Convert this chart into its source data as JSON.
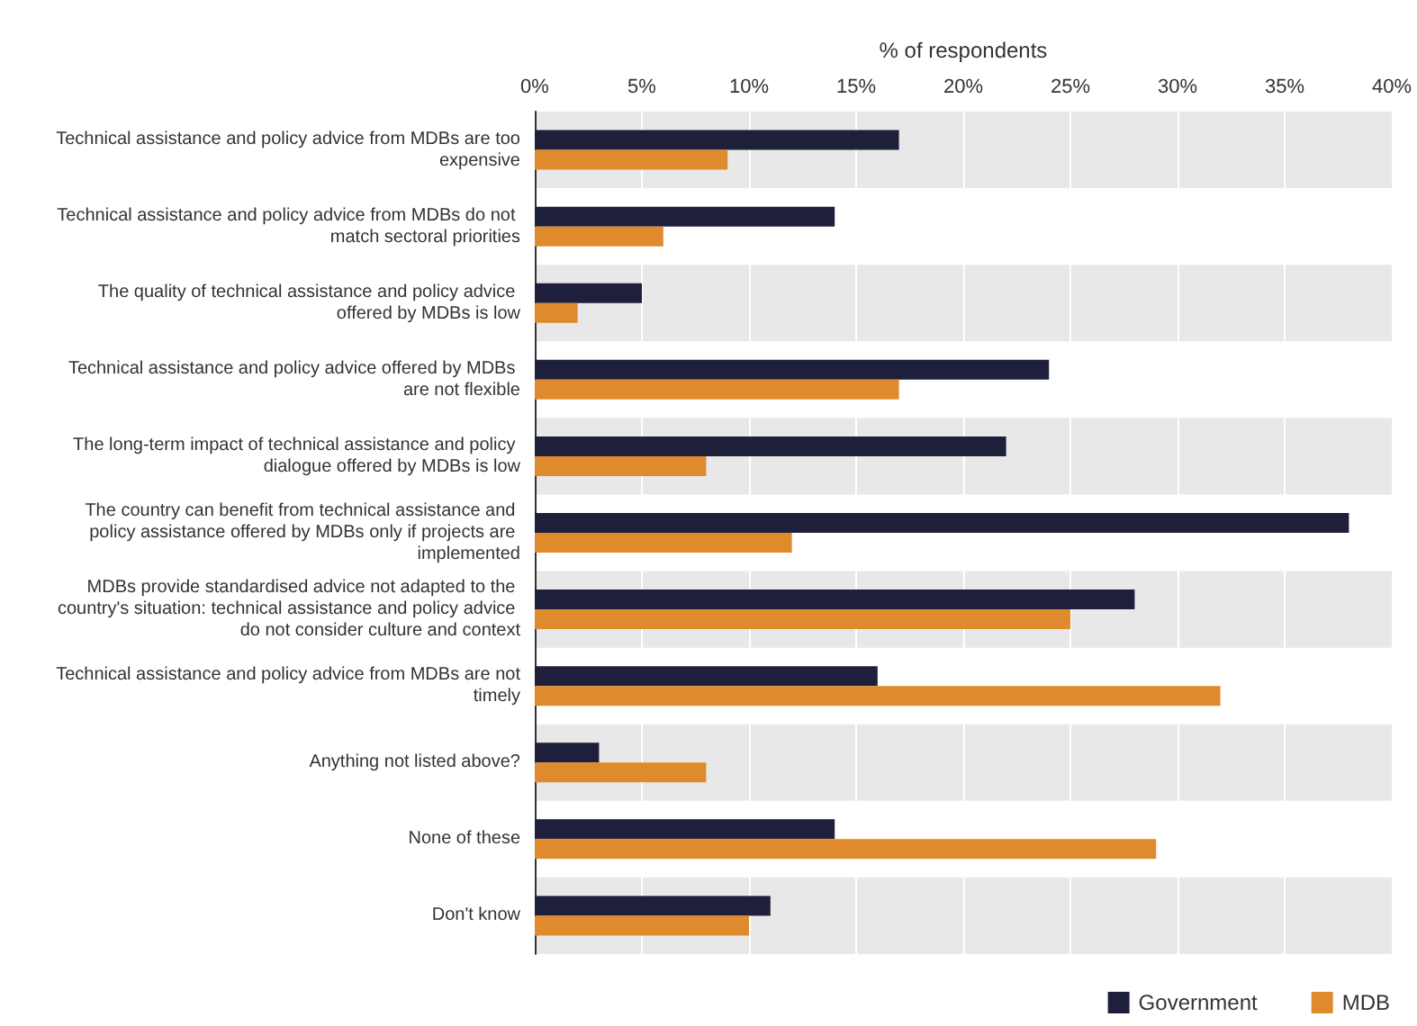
{
  "chart_data": {
    "type": "bar",
    "orientation": "horizontal",
    "xlabel": "% of respondents",
    "categories": [
      "Technical assistance and policy advice from MDBs are too expensive",
      "Technical assistance and policy advice from MDBs do not match sectoral priorities",
      "The quality of technical assistance and policy advice offered by MDBs is low",
      "Technical assistance and policy advice offered by MDBs are not flexible",
      "The long-term impact of technical assistance and policy dialogue offered by MDBs is low",
      "The country can benefit from technical assistance and policy assistance offered by MDBs only if projects are implemented",
      "MDBs provide standardised advice not adapted to the country's situation: technical assistance and policy advice do not consider culture and context",
      "Technical assistance and policy advice from MDBs are not timely",
      "Anything not listed above?",
      "None of these",
      "Don't know"
    ],
    "series": [
      {
        "name": "Government",
        "color": "#1e1f3b",
        "values": [
          17,
          14,
          5,
          24,
          22,
          38,
          28,
          16,
          3,
          14,
          11
        ]
      },
      {
        "name": "MDB",
        "color": "#e08a2e",
        "values": [
          9,
          6,
          2,
          17,
          8,
          12,
          25,
          32,
          8,
          29,
          10
        ]
      }
    ],
    "xlim": [
      0,
      40
    ],
    "xticks": [
      {
        "value": 0,
        "label": "0%"
      },
      {
        "value": 5,
        "label": "5%"
      },
      {
        "value": 10,
        "label": "10%"
      },
      {
        "value": 15,
        "label": "15%"
      },
      {
        "value": 20,
        "label": "20%"
      },
      {
        "value": 25,
        "label": "25%"
      },
      {
        "value": 30,
        "label": "30%"
      },
      {
        "value": 35,
        "label": "35%"
      },
      {
        "value": 40,
        "label": "40%"
      }
    ],
    "grid": "x",
    "legend": "bottom right"
  }
}
